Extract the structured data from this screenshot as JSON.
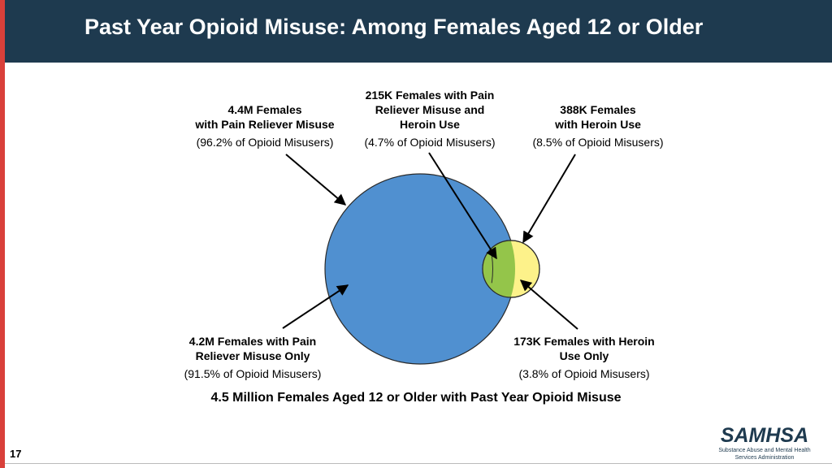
{
  "title": "Past Year Opioid Misuse: Among Females Aged 12 or Older",
  "labels": {
    "pain_total": {
      "line1": "4.4M Females",
      "line2": "with Pain Reliever Misuse",
      "note": "(96.2% of Opioid Misusers)"
    },
    "overlap": {
      "line1": "215K Females with Pain",
      "line2": "Reliever Misuse and",
      "line3": "Heroin Use",
      "note": "(4.7% of Opioid Misusers)"
    },
    "heroin_total": {
      "line1": "388K Females",
      "line2": "with Heroin Use",
      "note": "(8.5% of Opioid Misusers)"
    },
    "pain_only": {
      "line1": "4.2M Females with Pain",
      "line2": "Reliever Misuse Only",
      "note": "(91.5% of Opioid Misusers)"
    },
    "heroin_only": {
      "line1": "173K Females with Heroin",
      "line2": "Use Only",
      "note": "(3.8% of Opioid Misusers)"
    }
  },
  "caption": "4.5 Million Females Aged 12 or Older with Past Year Opioid Misuse",
  "slide_number": "17",
  "logo": {
    "name": "SAMHSA",
    "line1": "Substance Abuse and Mental Health",
    "line2": "Services Administration"
  },
  "colors": {
    "header": "#1e3a4f",
    "accent_bar": "#d9403a",
    "pain_circle": "#5090d0",
    "heroin_circle": "#fdf28a",
    "overlap": "#94c54a"
  }
}
